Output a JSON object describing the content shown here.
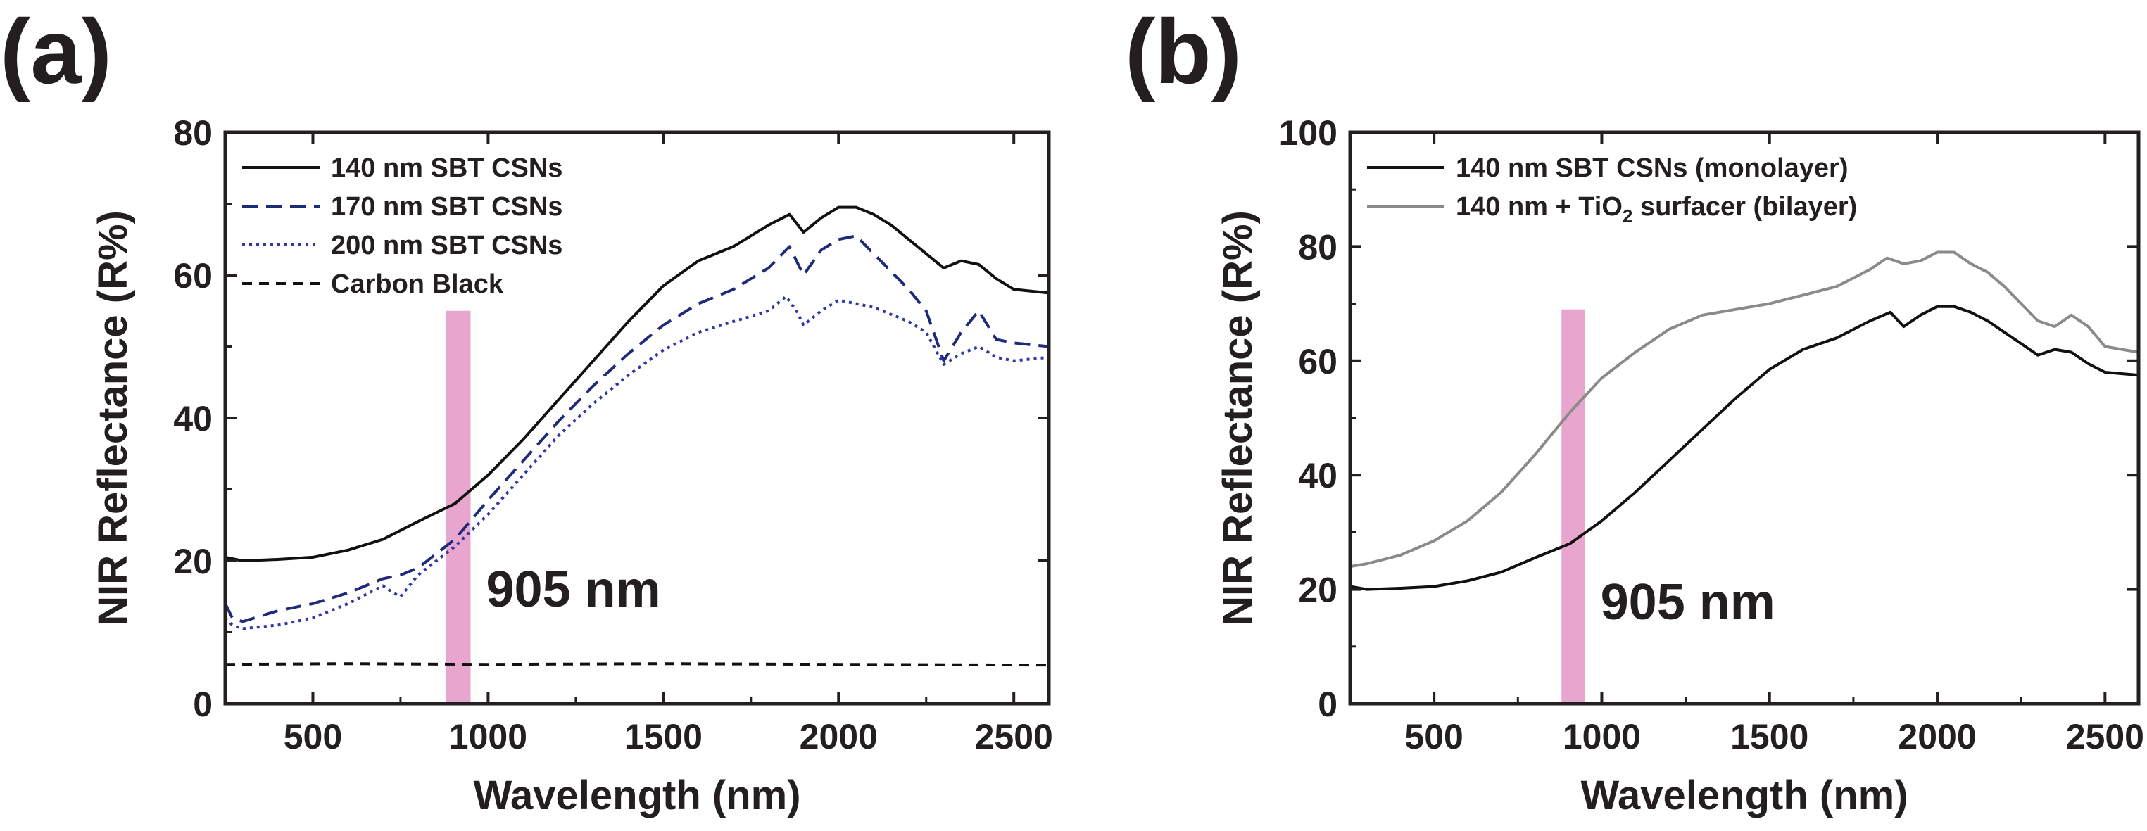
{
  "chart_data": [
    {
      "panel": "(a)",
      "type": "line",
      "xlabel": "Wavelength (nm)",
      "ylabel": "NIR Reflectance (R%)",
      "xlim": [
        250,
        2600
      ],
      "ylim": [
        0,
        80
      ],
      "xticks": [
        "500",
        "1000",
        "1500",
        "2000",
        "2500"
      ],
      "yticks": [
        "0",
        "20",
        "40",
        "60",
        "80"
      ],
      "legend_position": "top-left",
      "highlight_band": {
        "x_range": [
          880,
          950
        ],
        "y_max": 55,
        "color": "#e8a6cf"
      },
      "annotation": "905 nm",
      "series": [
        {
          "name": "140 nm SBT CSNs",
          "color": "#111111",
          "dash": "solid",
          "x": [
            250,
            300,
            400,
            500,
            600,
            700,
            800,
            905,
            1000,
            1100,
            1200,
            1300,
            1400,
            1500,
            1600,
            1700,
            1750,
            1800,
            1860,
            1900,
            1950,
            2000,
            2050,
            2100,
            2150,
            2200,
            2250,
            2300,
            2350,
            2400,
            2450,
            2500,
            2600
          ],
          "y": [
            20.5,
            20,
            20.2,
            20.5,
            21.5,
            23,
            25.5,
            28,
            32,
            37,
            42.5,
            48,
            53.5,
            58.5,
            62,
            64,
            65.5,
            67,
            68.5,
            66,
            68,
            69.5,
            69.5,
            68.5,
            67,
            65,
            63,
            61,
            62,
            61.5,
            59.5,
            58,
            57.5
          ]
        },
        {
          "name": "170 nm SBT CSNs",
          "color": "#1f2a7a",
          "dash": "dashed",
          "x": [
            250,
            270,
            300,
            400,
            500,
            600,
            700,
            750,
            800,
            905,
            1000,
            1100,
            1200,
            1300,
            1400,
            1500,
            1600,
            1700,
            1800,
            1860,
            1880,
            1900,
            1950,
            2000,
            2050,
            2100,
            2200,
            2250,
            2300,
            2350,
            2400,
            2450,
            2500,
            2600
          ],
          "y": [
            14,
            12,
            11.5,
            13,
            14,
            15.5,
            17.5,
            18,
            19,
            23,
            28.5,
            34,
            39.5,
            44.5,
            49,
            53,
            56,
            58,
            61,
            64,
            62,
            60,
            63.5,
            65,
            65.5,
            63,
            58,
            55,
            48,
            52,
            55,
            51,
            50.5,
            50
          ]
        },
        {
          "name": "200 nm SBT CSNs",
          "color": "#3137a3",
          "dash": "dotted",
          "x": [
            250,
            270,
            300,
            400,
            500,
            600,
            700,
            730,
            750,
            800,
            905,
            1000,
            1100,
            1200,
            1300,
            1400,
            1500,
            1600,
            1700,
            1800,
            1850,
            1880,
            1900,
            1950,
            2000,
            2050,
            2100,
            2200,
            2250,
            2300,
            2350,
            2400,
            2450,
            2500,
            2600
          ],
          "y": [
            12,
            11,
            10.5,
            11,
            12,
            14,
            16.5,
            15.5,
            15,
            18,
            22,
            26.5,
            32,
            37.5,
            42,
            46,
            49.5,
            52,
            53.5,
            55,
            57,
            55,
            53,
            55,
            56.5,
            56,
            55.5,
            53.5,
            52,
            47.5,
            49,
            50,
            48.5,
            48,
            48.5
          ]
        },
        {
          "name": "Carbon Black",
          "color": "#111111",
          "dash": "dashed-short",
          "x": [
            250,
            600,
            1000,
            1500,
            2000,
            2600
          ],
          "y": [
            5.5,
            5.6,
            5.5,
            5.6,
            5.5,
            5.4
          ]
        }
      ]
    },
    {
      "panel": "(b)",
      "type": "line",
      "xlabel": "Wavelength (nm)",
      "ylabel": "NIR Reflectance (R%)",
      "xlim": [
        250,
        2600
      ],
      "ylim": [
        0,
        100
      ],
      "xticks": [
        "500",
        "1000",
        "1500",
        "2000",
        "2500"
      ],
      "yticks": [
        "0",
        "20",
        "40",
        "60",
        "80",
        "100"
      ],
      "legend_position": "top-left",
      "highlight_band": {
        "x_range": [
          880,
          950
        ],
        "y_max": 69,
        "color": "#e8a6cf"
      },
      "annotation": "905 nm",
      "series": [
        {
          "name": "140 nm SBT CSNs (monolayer)",
          "color": "#111111",
          "dash": "solid",
          "x": [
            250,
            300,
            400,
            500,
            600,
            700,
            800,
            905,
            1000,
            1100,
            1200,
            1300,
            1400,
            1500,
            1600,
            1700,
            1750,
            1800,
            1860,
            1900,
            1950,
            2000,
            2050,
            2100,
            2150,
            2200,
            2250,
            2300,
            2350,
            2400,
            2450,
            2500,
            2600
          ],
          "y": [
            20.5,
            20,
            20.2,
            20.5,
            21.5,
            23,
            25.5,
            28,
            32,
            37,
            42.5,
            48,
            53.5,
            58.5,
            62,
            64,
            65.5,
            67,
            68.5,
            66,
            68,
            69.5,
            69.5,
            68.5,
            67,
            65,
            63,
            61,
            62,
            61.5,
            59.5,
            58,
            57.5
          ]
        },
        {
          "name_parts": [
            "140 nm + TiO",
            "2",
            " surfacer (bilayer)"
          ],
          "color": "#8a8a8a",
          "dash": "solid",
          "x": [
            250,
            300,
            400,
            500,
            600,
            700,
            800,
            905,
            1000,
            1100,
            1200,
            1300,
            1400,
            1500,
            1600,
            1700,
            1750,
            1800,
            1850,
            1900,
            1950,
            2000,
            2050,
            2100,
            2150,
            2200,
            2250,
            2300,
            2350,
            2400,
            2450,
            2500,
            2600
          ],
          "y": [
            24,
            24.5,
            26,
            28.5,
            32,
            37,
            43.5,
            51,
            57,
            61.5,
            65.5,
            68,
            69,
            70,
            71.5,
            73,
            74.5,
            76,
            78,
            77,
            77.5,
            79,
            79,
            77,
            75.5,
            73,
            70,
            67,
            66,
            68,
            66,
            62.5,
            61.5
          ]
        }
      ]
    }
  ]
}
